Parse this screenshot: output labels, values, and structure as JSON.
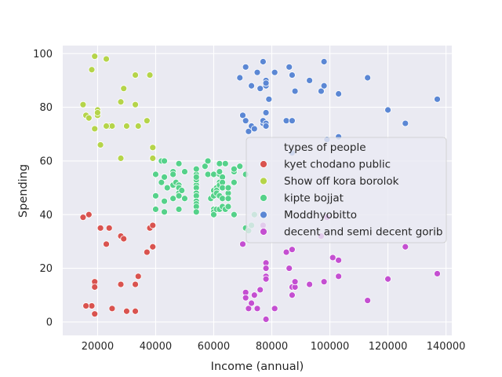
{
  "chart_data": {
    "type": "scatter",
    "xlabel": "Income (annual)",
    "ylabel": "Spending",
    "xlim": [
      8000,
      142000
    ],
    "ylim": [
      -5,
      103
    ],
    "xticks": [
      20000,
      40000,
      60000,
      80000,
      100000,
      120000,
      140000
    ],
    "yticks": [
      0,
      20,
      40,
      60,
      80,
      100
    ],
    "grid": true,
    "legend": {
      "title": "types of people",
      "placement": "center-right"
    },
    "series": [
      {
        "name": "kyet chodano public",
        "color": "#d9534f",
        "points": [
          [
            15000,
            39
          ],
          [
            17000,
            40
          ],
          [
            19000,
            14
          ],
          [
            19000,
            15
          ],
          [
            19000,
            13
          ],
          [
            21000,
            35
          ],
          [
            23000,
            29
          ],
          [
            24000,
            35
          ],
          [
            25000,
            5
          ],
          [
            28000,
            32
          ],
          [
            28000,
            14
          ],
          [
            29000,
            31
          ],
          [
            30000,
            4
          ],
          [
            33000,
            14
          ],
          [
            33000,
            4
          ],
          [
            34000,
            17
          ],
          [
            37000,
            26
          ],
          [
            38000,
            35
          ],
          [
            39000,
            36
          ],
          [
            39000,
            28
          ],
          [
            18000,
            6
          ],
          [
            16000,
            6
          ],
          [
            19000,
            3
          ]
        ]
      },
      {
        "name": "Show off kora borolok",
        "color": "#b5d44a",
        "points": [
          [
            15000,
            81
          ],
          [
            16000,
            77
          ],
          [
            17000,
            76
          ],
          [
            18000,
            94
          ],
          [
            19000,
            99
          ],
          [
            20000,
            79
          ],
          [
            20000,
            77
          ],
          [
            19000,
            72
          ],
          [
            21000,
            66
          ],
          [
            23000,
            98
          ],
          [
            24000,
            73
          ],
          [
            25000,
            73
          ],
          [
            28000,
            82
          ],
          [
            29000,
            87
          ],
          [
            30000,
            73
          ],
          [
            33000,
            92
          ],
          [
            33000,
            81
          ],
          [
            34000,
            73
          ],
          [
            37000,
            75
          ],
          [
            38000,
            92
          ],
          [
            39000,
            65
          ],
          [
            39000,
            61
          ],
          [
            28000,
            61
          ],
          [
            23000,
            73
          ],
          [
            20000,
            78
          ]
        ]
      },
      {
        "name": "kipte bojjat",
        "color": "#55d18a",
        "points": [
          [
            40000,
            55
          ],
          [
            40000,
            47
          ],
          [
            40000,
            42
          ],
          [
            42000,
            52
          ],
          [
            42000,
            60
          ],
          [
            43000,
            60
          ],
          [
            43000,
            54
          ],
          [
            43000,
            45
          ],
          [
            43000,
            41
          ],
          [
            44000,
            50
          ],
          [
            46000,
            51
          ],
          [
            46000,
            46
          ],
          [
            46000,
            56
          ],
          [
            46000,
            55
          ],
          [
            47000,
            52
          ],
          [
            48000,
            59
          ],
          [
            48000,
            51
          ],
          [
            48000,
            59
          ],
          [
            48000,
            50
          ],
          [
            48000,
            48
          ],
          [
            48000,
            47
          ],
          [
            48000,
            42
          ],
          [
            49000,
            49
          ],
          [
            50000,
            56
          ],
          [
            50000,
            46
          ],
          [
            54000,
            55
          ],
          [
            54000,
            57
          ],
          [
            54000,
            52
          ],
          [
            54000,
            51
          ],
          [
            54000,
            50
          ],
          [
            54000,
            48
          ],
          [
            54000,
            47
          ],
          [
            54000,
            45
          ],
          [
            54000,
            44
          ],
          [
            54000,
            43
          ],
          [
            54000,
            41
          ],
          [
            54000,
            53
          ],
          [
            54000,
            54
          ],
          [
            57000,
            58
          ],
          [
            58000,
            55
          ],
          [
            58000,
            60
          ],
          [
            59000,
            46
          ],
          [
            60000,
            55
          ],
          [
            60000,
            49
          ],
          [
            60000,
            47
          ],
          [
            60000,
            42
          ],
          [
            60000,
            41
          ],
          [
            60000,
            40
          ],
          [
            61000,
            42
          ],
          [
            61000,
            50
          ],
          [
            61000,
            49
          ],
          [
            61000,
            48
          ],
          [
            62000,
            59
          ],
          [
            62000,
            55
          ],
          [
            62000,
            56
          ],
          [
            62000,
            52
          ],
          [
            62000,
            51
          ],
          [
            62000,
            47
          ],
          [
            62000,
            42
          ],
          [
            63000,
            54
          ],
          [
            63000,
            52
          ],
          [
            63000,
            50
          ],
          [
            63000,
            46
          ],
          [
            63000,
            43
          ],
          [
            64000,
            42
          ],
          [
            64000,
            59
          ],
          [
            65000,
            48
          ],
          [
            65000,
            50
          ],
          [
            65000,
            43
          ],
          [
            65000,
            46
          ],
          [
            67000,
            56
          ],
          [
            67000,
            40
          ],
          [
            67000,
            52
          ],
          [
            67000,
            57
          ],
          [
            69000,
            58
          ],
          [
            71000,
            35
          ],
          [
            72000,
            34
          ],
          [
            71000,
            55
          ],
          [
            73000,
            36
          ],
          [
            74000,
            40
          ]
        ]
      },
      {
        "name": "Moddhyobitto",
        "color": "#5b87d4",
        "points": [
          [
            69000,
            91
          ],
          [
            70000,
            77
          ],
          [
            71000,
            95
          ],
          [
            71000,
            75
          ],
          [
            72000,
            71
          ],
          [
            73000,
            88
          ],
          [
            73000,
            73
          ],
          [
            74000,
            72
          ],
          [
            75000,
            93
          ],
          [
            76000,
            87
          ],
          [
            77000,
            97
          ],
          [
            77000,
            74
          ],
          [
            77000,
            75
          ],
          [
            78000,
            88
          ],
          [
            78000,
            90
          ],
          [
            78000,
            89
          ],
          [
            78000,
            78
          ],
          [
            78000,
            74
          ],
          [
            78000,
            73
          ],
          [
            79000,
            83
          ],
          [
            81000,
            93
          ],
          [
            85000,
            75
          ],
          [
            86000,
            95
          ],
          [
            87000,
            63
          ],
          [
            87000,
            92
          ],
          [
            87000,
            75
          ],
          [
            88000,
            86
          ],
          [
            93000,
            90
          ],
          [
            97000,
            86
          ],
          [
            98000,
            97
          ],
          [
            98000,
            88
          ],
          [
            99000,
            68
          ],
          [
            103000,
            85
          ],
          [
            103000,
            69
          ],
          [
            113000,
            91
          ],
          [
            120000,
            79
          ],
          [
            126000,
            74
          ],
          [
            137000,
            83
          ]
        ]
      },
      {
        "name": "decent and semi decent gorib",
        "color": "#c44fd1",
        "points": [
          [
            70000,
            29
          ],
          [
            71000,
            11
          ],
          [
            71000,
            9
          ],
          [
            72000,
            5
          ],
          [
            73000,
            7
          ],
          [
            74000,
            10
          ],
          [
            75000,
            5
          ],
          [
            76000,
            12
          ],
          [
            77000,
            36
          ],
          [
            78000,
            22
          ],
          [
            78000,
            17
          ],
          [
            78000,
            16
          ],
          [
            78000,
            20
          ],
          [
            78000,
            1
          ],
          [
            81000,
            5
          ],
          [
            85000,
            26
          ],
          [
            86000,
            20
          ],
          [
            87000,
            27
          ],
          [
            87000,
            13
          ],
          [
            87000,
            10
          ],
          [
            88000,
            13
          ],
          [
            88000,
            15
          ],
          [
            93000,
            14
          ],
          [
            97000,
            32
          ],
          [
            98000,
            15
          ],
          [
            99000,
            39
          ],
          [
            101000,
            24
          ],
          [
            103000,
            17
          ],
          [
            103000,
            23
          ],
          [
            113000,
            8
          ],
          [
            120000,
            16
          ],
          [
            126000,
            28
          ],
          [
            137000,
            18
          ]
        ]
      }
    ]
  }
}
